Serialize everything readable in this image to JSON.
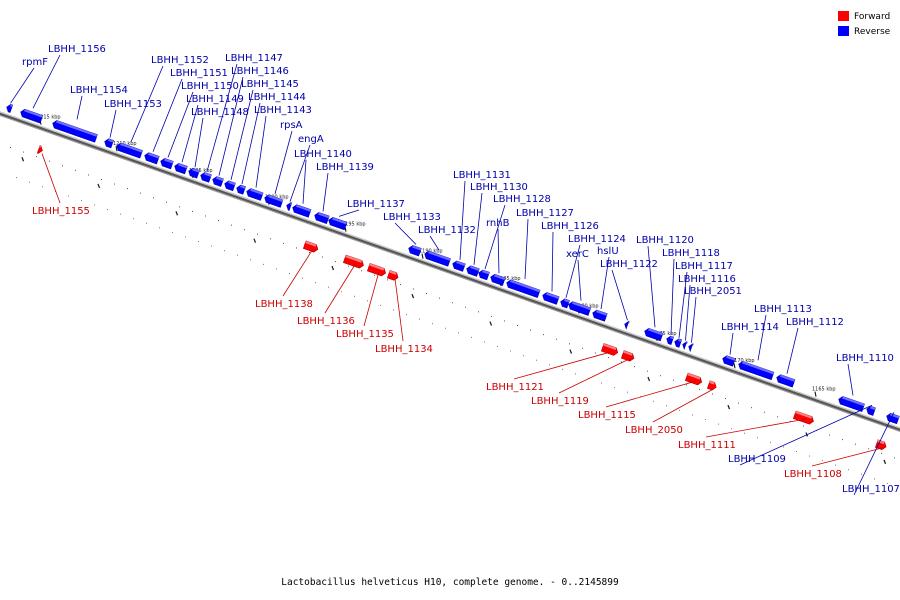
{
  "caption": "Lactobacillus helveticus H10, complete genome. - 0..2145899",
  "legend": [
    {
      "label": "Forward",
      "color": "#ff0000"
    },
    {
      "label": "Reverse",
      "color": "#0000ff"
    }
  ],
  "colors": {
    "forward": "#ff0000",
    "reverse": "#0000ff",
    "backbone": "#555555"
  },
  "ticks": [
    "1215 kbp",
    "1210 kbp",
    "1205 kbp",
    "1200 kbp",
    "1195 kbp",
    "1190 kbp",
    "1185 kbp",
    "1180 kbp",
    "1175 kbp",
    "1170 kbp",
    "1165 kbp"
  ],
  "genes": [
    {
      "name": "rpmF",
      "strand": "reverse"
    },
    {
      "name": "LBHH_1156",
      "strand": "reverse"
    },
    {
      "name": "LBHH_1154",
      "strand": "reverse"
    },
    {
      "name": "LBHH_1153",
      "strand": "reverse"
    },
    {
      "name": "LBHH_1152",
      "strand": "reverse"
    },
    {
      "name": "LBHH_1151",
      "strand": "reverse"
    },
    {
      "name": "LBHH_1150",
      "strand": "reverse"
    },
    {
      "name": "LBHH_1149",
      "strand": "reverse"
    },
    {
      "name": "LBHH_1148",
      "strand": "reverse"
    },
    {
      "name": "LBHH_1147",
      "strand": "reverse"
    },
    {
      "name": "LBHH_1146",
      "strand": "reverse"
    },
    {
      "name": "LBHH_1145",
      "strand": "reverse"
    },
    {
      "name": "LBHH_1144",
      "strand": "reverse"
    },
    {
      "name": "LBHH_1143",
      "strand": "reverse"
    },
    {
      "name": "rpsA",
      "strand": "reverse"
    },
    {
      "name": "engA",
      "strand": "reverse"
    },
    {
      "name": "LBHH_1140",
      "strand": "reverse"
    },
    {
      "name": "LBHH_1139",
      "strand": "reverse"
    },
    {
      "name": "LBHH_1137",
      "strand": "reverse"
    },
    {
      "name": "LBHH_1133",
      "strand": "reverse"
    },
    {
      "name": "LBHH_1132",
      "strand": "reverse"
    },
    {
      "name": "LBHH_1131",
      "strand": "reverse"
    },
    {
      "name": "LBHH_1130",
      "strand": "reverse"
    },
    {
      "name": "LBHH_1128",
      "strand": "reverse"
    },
    {
      "name": "rnhB",
      "strand": "reverse"
    },
    {
      "name": "LBHH_1127",
      "strand": "reverse"
    },
    {
      "name": "LBHH_1126",
      "strand": "reverse"
    },
    {
      "name": "LBHH_1124",
      "strand": "reverse"
    },
    {
      "name": "xerC",
      "strand": "reverse"
    },
    {
      "name": "hslU",
      "strand": "reverse"
    },
    {
      "name": "LBHH_1122",
      "strand": "reverse"
    },
    {
      "name": "LBHH_1120",
      "strand": "reverse"
    },
    {
      "name": "LBHH_1118",
      "strand": "reverse"
    },
    {
      "name": "LBHH_1117",
      "strand": "reverse"
    },
    {
      "name": "LBHH_1116",
      "strand": "reverse"
    },
    {
      "name": "LBHH_2051",
      "strand": "reverse"
    },
    {
      "name": "LBHH_1113",
      "strand": "reverse"
    },
    {
      "name": "LBHH_1114",
      "strand": "reverse"
    },
    {
      "name": "LBHH_1112",
      "strand": "reverse"
    },
    {
      "name": "LBHH_1110",
      "strand": "reverse"
    },
    {
      "name": "LBHH_1109",
      "strand": "reverse"
    },
    {
      "name": "LBHH_1107",
      "strand": "reverse"
    },
    {
      "name": "LBHH_1155",
      "strand": "forward"
    },
    {
      "name": "LBHH_1138",
      "strand": "forward"
    },
    {
      "name": "LBHH_1136",
      "strand": "forward"
    },
    {
      "name": "LBHH_1135",
      "strand": "forward"
    },
    {
      "name": "LBHH_1134",
      "strand": "forward"
    },
    {
      "name": "LBHH_1121",
      "strand": "forward"
    },
    {
      "name": "LBHH_1119",
      "strand": "forward"
    },
    {
      "name": "LBHH_1115",
      "strand": "forward"
    },
    {
      "name": "LBHH_2050",
      "strand": "forward"
    },
    {
      "name": "LBHH_1111",
      "strand": "forward"
    },
    {
      "name": "LBHH_1108",
      "strand": "forward"
    }
  ]
}
